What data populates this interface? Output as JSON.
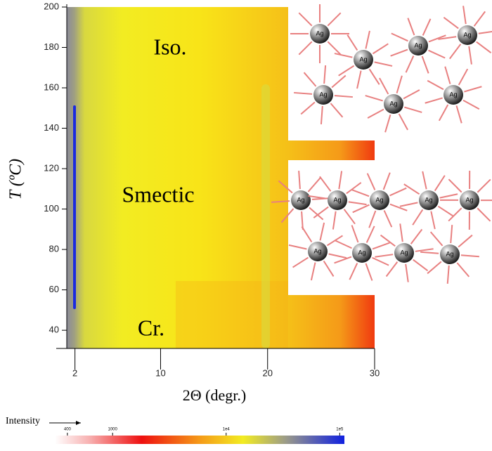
{
  "chart_data": {
    "type": "heatmap",
    "xlabel": "2Θ (degr.)",
    "ylabel": "T (ºC)",
    "xlim": [
      0.25,
      30
    ],
    "xticks": [
      2,
      10,
      20,
      30
    ],
    "ylim": [
      31,
      200
    ],
    "yticks": [
      40,
      60,
      80,
      100,
      120,
      140,
      160,
      180,
      200
    ],
    "annotations": [
      "Iso.",
      "Smectic",
      "Cr."
    ],
    "molecule_label": "Ag",
    "colorbar": {
      "label": "Intensity",
      "log": true,
      "lim": [
        310,
        110000
      ],
      "ticks": [
        400,
        1000,
        {
          "value": 10000,
          "label": "1e4"
        },
        {
          "value": 100000,
          "label": "1e5"
        }
      ]
    }
  }
}
